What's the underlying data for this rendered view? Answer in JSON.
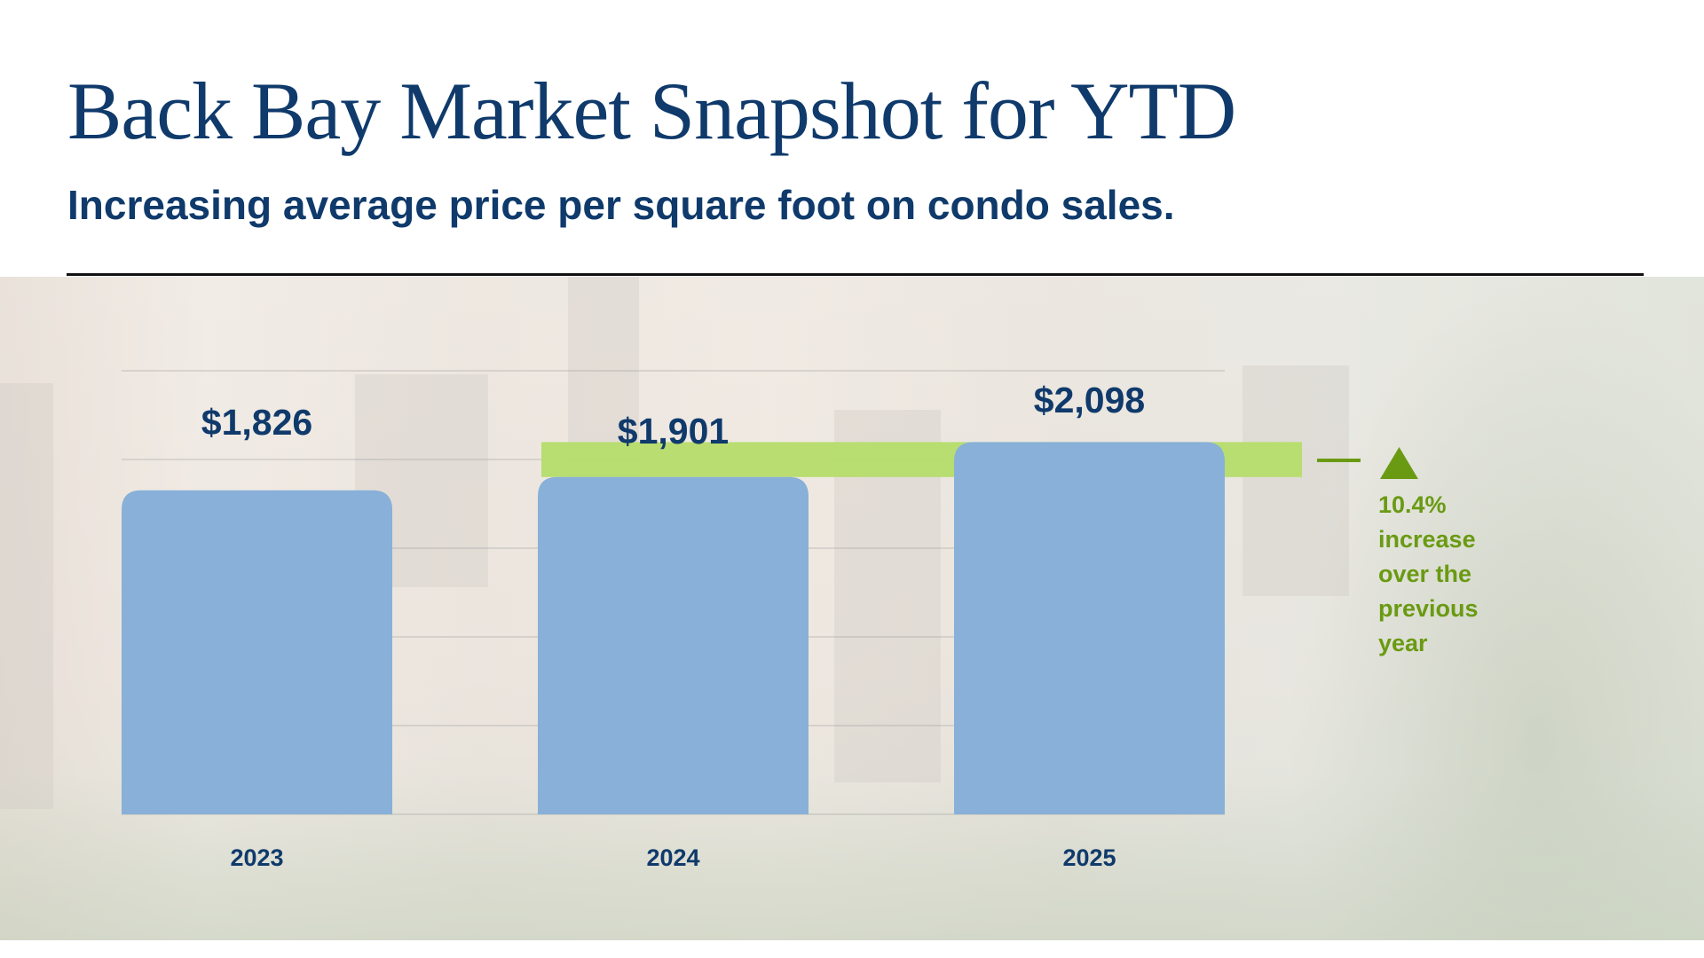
{
  "title": "Back Bay Market Snapshot for YTD",
  "subtitle": "Increasing average price per square foot on condo sales.",
  "colors": {
    "title": "#0f3a6b",
    "bar": "#88b0d8",
    "highlight": "#b5dc6a",
    "accent_green": "#6a9a12",
    "rule": "#111111"
  },
  "annotation": {
    "icon": "triangle-up-icon",
    "lines": [
      "10.4%",
      "increase",
      "over the",
      "previous",
      "year"
    ]
  },
  "chart_data": {
    "type": "bar",
    "categories": [
      "2023",
      "2024",
      "2025"
    ],
    "values": [
      1826,
      1901,
      2098
    ],
    "data_labels": [
      "$1,826",
      "$1,901",
      "$2,098"
    ],
    "title": "",
    "xlabel": "",
    "ylabel": "",
    "ylim": [
      0,
      2500
    ],
    "grid": true,
    "gridline_step": 500,
    "y_tick_labels_shown": false,
    "highlight_band": {
      "from": 1901,
      "to": 2098
    }
  }
}
